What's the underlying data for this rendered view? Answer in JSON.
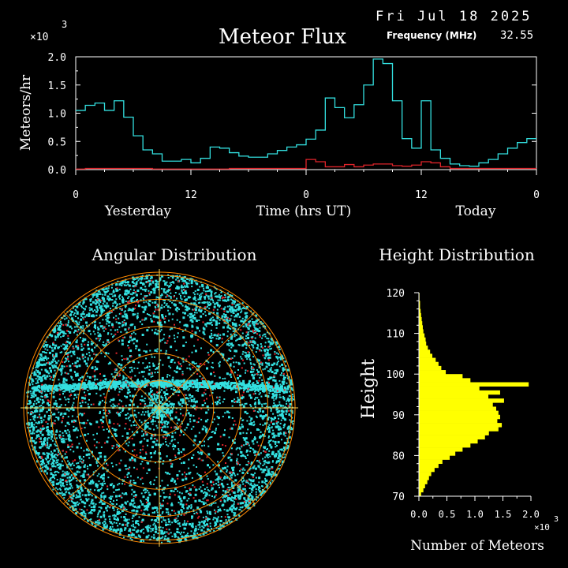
{
  "header": {
    "date": "Fri Jul 18 2025",
    "frequency_label": "Frequency (MHz)",
    "frequency_value": "32.55",
    "title": "Meteor Flux"
  },
  "colors": {
    "background": "#000000",
    "axes": "#ffffff",
    "total_series": "#33e0e0",
    "secondary_series": "#e0242a",
    "dots": "#33e0e0",
    "rings": "#ff8800",
    "histogram": "#ffff00"
  },
  "chart_data": [
    {
      "type": "line",
      "title": "Meteor Flux",
      "ylabel": "Meteors/hr",
      "xlabel": "Time (hrs UT)",
      "y_multiplier_label": "×10",
      "y_multiplier_exponent": "3",
      "ylim": [
        0,
        2.0
      ],
      "xlim": [
        0,
        48
      ],
      "x_tick_labels": [
        "0",
        "12",
        "0",
        "12",
        "0"
      ],
      "x_tick_values": [
        0,
        12,
        24,
        36,
        48
      ],
      "y_tick_labels": [
        "0.0",
        "0.5",
        "1.0",
        "1.5",
        "2.0"
      ],
      "y_tick_values": [
        0,
        0.5,
        1.0,
        1.5,
        2.0
      ],
      "period_labels": [
        "Yesterday",
        "Today"
      ],
      "step": true,
      "series": [
        {
          "color": "#33e0e0",
          "x": [
            0,
            1,
            2,
            3,
            4,
            5,
            6,
            7,
            8,
            9,
            10,
            11,
            12,
            13,
            14,
            15,
            16,
            17,
            18,
            19,
            20,
            21,
            22,
            23,
            24,
            25,
            26,
            27,
            28,
            29,
            30,
            31,
            32,
            33,
            34,
            35,
            36,
            37,
            38,
            39,
            40,
            41,
            42,
            43,
            44,
            45,
            46,
            47
          ],
          "values": [
            1.05,
            1.14,
            1.18,
            1.05,
            1.22,
            0.93,
            0.6,
            0.35,
            0.28,
            0.15,
            0.15,
            0.18,
            0.12,
            0.2,
            0.4,
            0.38,
            0.3,
            0.24,
            0.22,
            0.22,
            0.28,
            0.34,
            0.4,
            0.44,
            0.54,
            0.7,
            1.27,
            1.1,
            0.92,
            1.15,
            1.5,
            1.96,
            1.88,
            1.22,
            0.55,
            0.38,
            1.22,
            0.35,
            0.2,
            0.1,
            0.07,
            0.06,
            0.12,
            0.18,
            0.28,
            0.38,
            0.48,
            0.55
          ]
        },
        {
          "color": "#e0242a",
          "x": [
            0,
            1,
            2,
            3,
            4,
            5,
            6,
            7,
            8,
            9,
            10,
            11,
            12,
            13,
            14,
            15,
            16,
            17,
            18,
            19,
            20,
            21,
            22,
            23,
            24,
            25,
            26,
            27,
            28,
            29,
            30,
            31,
            32,
            33,
            34,
            35,
            36,
            37,
            38,
            39,
            40,
            41,
            42,
            43,
            44,
            45,
            46,
            47
          ],
          "values": [
            0.01,
            0.02,
            0.02,
            0.02,
            0.02,
            0.02,
            0.02,
            0.02,
            0.01,
            0.01,
            0.01,
            0.01,
            0.01,
            0.01,
            0.01,
            0.01,
            0.02,
            0.02,
            0.02,
            0.02,
            0.02,
            0.02,
            0.02,
            0.02,
            0.18,
            0.14,
            0.05,
            0.05,
            0.09,
            0.05,
            0.08,
            0.1,
            0.1,
            0.07,
            0.06,
            0.08,
            0.14,
            0.12,
            0.05,
            0.02,
            0.02,
            0.02,
            0.02,
            0.02,
            0.02,
            0.02,
            0.02,
            0.02
          ]
        }
      ]
    },
    {
      "type": "scatter",
      "title": "Angular Distribution",
      "projection": "polar sky map",
      "rings": 5,
      "spokes": 8
    },
    {
      "type": "bar",
      "orientation": "horizontal",
      "title": "Height Distribution",
      "ylabel": "Height",
      "xlabel": "Number of Meteors",
      "x_multiplier_label": "×10",
      "x_multiplier_exponent": "3",
      "xlim": [
        0,
        2.0
      ],
      "ylim": [
        70,
        120
      ],
      "x_tick_labels": [
        "0.0",
        "0.5",
        "1.0",
        "1.5",
        "2.0"
      ],
      "x_tick_values": [
        0,
        0.5,
        1.0,
        1.5,
        2.0
      ],
      "y_tick_labels": [
        "70",
        "80",
        "90",
        "100",
        "110",
        "120"
      ],
      "y_tick_values": [
        70,
        80,
        90,
        100,
        110,
        120
      ],
      "bin_width": 1,
      "bin_start": [
        70,
        71,
        72,
        73,
        74,
        75,
        76,
        77,
        78,
        79,
        80,
        81,
        82,
        83,
        84,
        85,
        86,
        87,
        88,
        89,
        90,
        91,
        92,
        93,
        94,
        95,
        96,
        97,
        98,
        99,
        100,
        101,
        102,
        103,
        104,
        105,
        106,
        107,
        108,
        109,
        110,
        111,
        112,
        113,
        114,
        115,
        116,
        117,
        118,
        119
      ],
      "values": [
        0.04,
        0.08,
        0.11,
        0.15,
        0.18,
        0.22,
        0.28,
        0.35,
        0.42,
        0.55,
        0.65,
        0.78,
        0.92,
        1.05,
        1.18,
        1.25,
        1.42,
        1.48,
        1.4,
        1.45,
        1.42,
        1.38,
        1.32,
        1.52,
        1.24,
        1.45,
        1.08,
        1.96,
        0.92,
        0.78,
        0.48,
        0.4,
        0.35,
        0.3,
        0.24,
        0.2,
        0.16,
        0.13,
        0.12,
        0.1,
        0.08,
        0.07,
        0.06,
        0.05,
        0.04,
        0.03,
        0.02,
        0.02,
        0.01,
        0.01
      ]
    }
  ]
}
